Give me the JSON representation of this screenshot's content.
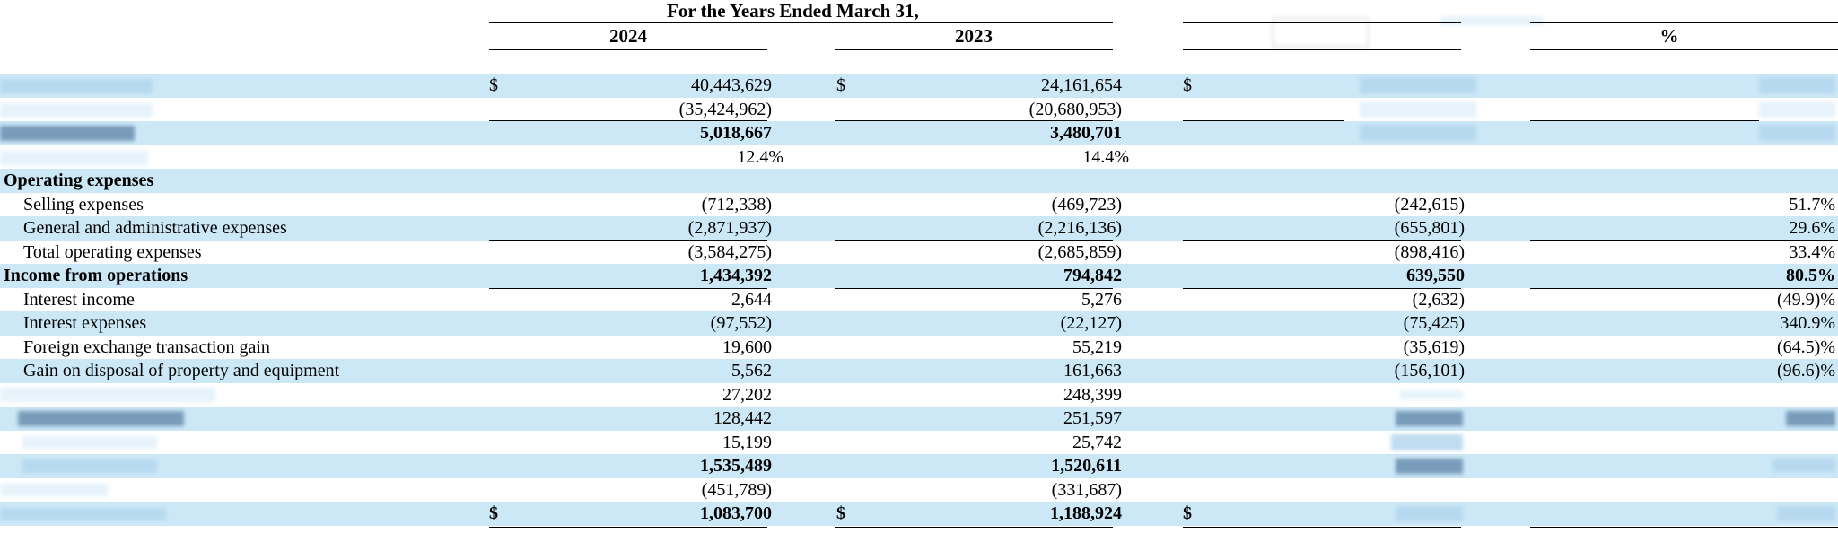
{
  "header": {
    "period": "For the Years Ended March 31,",
    "year_2024": "2024",
    "year_2023": "2023",
    "percent": "%"
  },
  "rows": [
    {
      "label": "",
      "dollar_2024": "$",
      "v2024": "40,443,629",
      "dollar_2023": "$",
      "v2023": "24,161,654",
      "dollar_chg": "$",
      "chg": "",
      "pct": ""
    },
    {
      "label": "",
      "v2024": "(35,424,962)",
      "v2023": "(20,680,953)",
      "chg": "",
      "pct": ""
    },
    {
      "label": "",
      "v2024": "5,018,667",
      "v2023": "3,480,701",
      "chg": "",
      "pct": ""
    },
    {
      "label": "",
      "v2024": "12.4%",
      "v2023": "14.4%"
    },
    {
      "label": "Operating expenses"
    },
    {
      "label": "Selling expenses",
      "v2024": "(712,338)",
      "v2023": "(469,723)",
      "chg": "(242,615)",
      "pct": "51.7%"
    },
    {
      "label": "General and administrative expenses",
      "v2024": "(2,871,937)",
      "v2023": "(2,216,136)",
      "chg": "(655,801)",
      "pct": "29.6%"
    },
    {
      "label": "Total operating expenses",
      "v2024": "(3,584,275)",
      "v2023": "(2,685,859)",
      "chg": "(898,416)",
      "pct": "33.4%"
    },
    {
      "label": "Income from operations",
      "v2024": "1,434,392",
      "v2023": "794,842",
      "chg": "639,550",
      "pct": "80.5%"
    },
    {
      "label": "Interest income",
      "v2024": "2,644",
      "v2023": "5,276",
      "chg": "(2,632)",
      "pct": "(49.9)%"
    },
    {
      "label": "Interest expenses",
      "v2024": "(97,552)",
      "v2023": "(22,127)",
      "chg": "(75,425)",
      "pct": "340.9%"
    },
    {
      "label": "Foreign exchange transaction gain",
      "v2024": "19,600",
      "v2023": "55,219",
      "chg": "(35,619)",
      "pct": "(64.5)%"
    },
    {
      "label": "Gain on disposal of property and equipment",
      "v2024": "5,562",
      "v2023": "161,663",
      "chg": "(156,101)",
      "pct": "(96.6)%"
    },
    {
      "label": "",
      "v2024": "27,202",
      "v2023": "248,399",
      "chg": "",
      "pct": ""
    },
    {
      "label": "",
      "v2024": "128,442",
      "v2023": "251,597",
      "chg": "",
      "pct": ""
    },
    {
      "label": "",
      "v2024": "15,199",
      "v2023": "25,742",
      "chg": "",
      "pct": ""
    },
    {
      "label": "",
      "v2024": "1,535,489",
      "v2023": "1,520,611",
      "chg": "",
      "pct": ""
    },
    {
      "label": "",
      "v2024": "(451,789)",
      "v2023": "(331,687)",
      "chg": "",
      "pct": ""
    },
    {
      "label": "",
      "dollar_2024": "$",
      "v2024": "1,083,700",
      "dollar_2023": "$",
      "v2023": "1,188,924",
      "dollar_chg": "$",
      "chg": "",
      "pct": ""
    }
  ]
}
